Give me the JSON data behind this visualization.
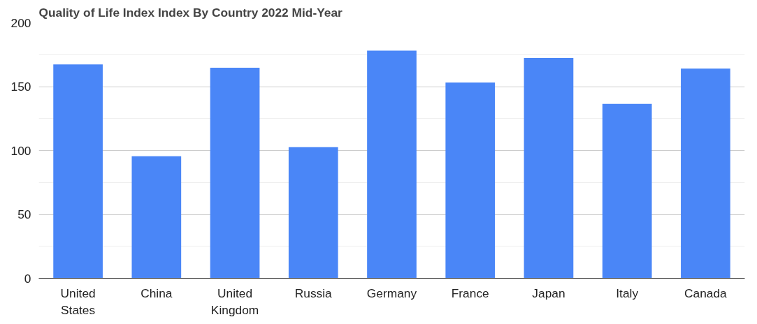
{
  "chart_data": {
    "type": "bar",
    "title": "Quality of Life Index Index By Country 2022 Mid-Year",
    "categories": [
      "United States",
      "China",
      "United Kingdom",
      "Russia",
      "Germany",
      "France",
      "Japan",
      "Italy",
      "Canada"
    ],
    "values": [
      167.3,
      95.5,
      164.7,
      102.6,
      178.2,
      153.2,
      172.4,
      136.5,
      164.1
    ],
    "color": "#4a86f7",
    "ylim": [
      0,
      200
    ],
    "yticks": [
      0,
      50,
      100,
      150,
      200
    ],
    "grid": "y"
  }
}
